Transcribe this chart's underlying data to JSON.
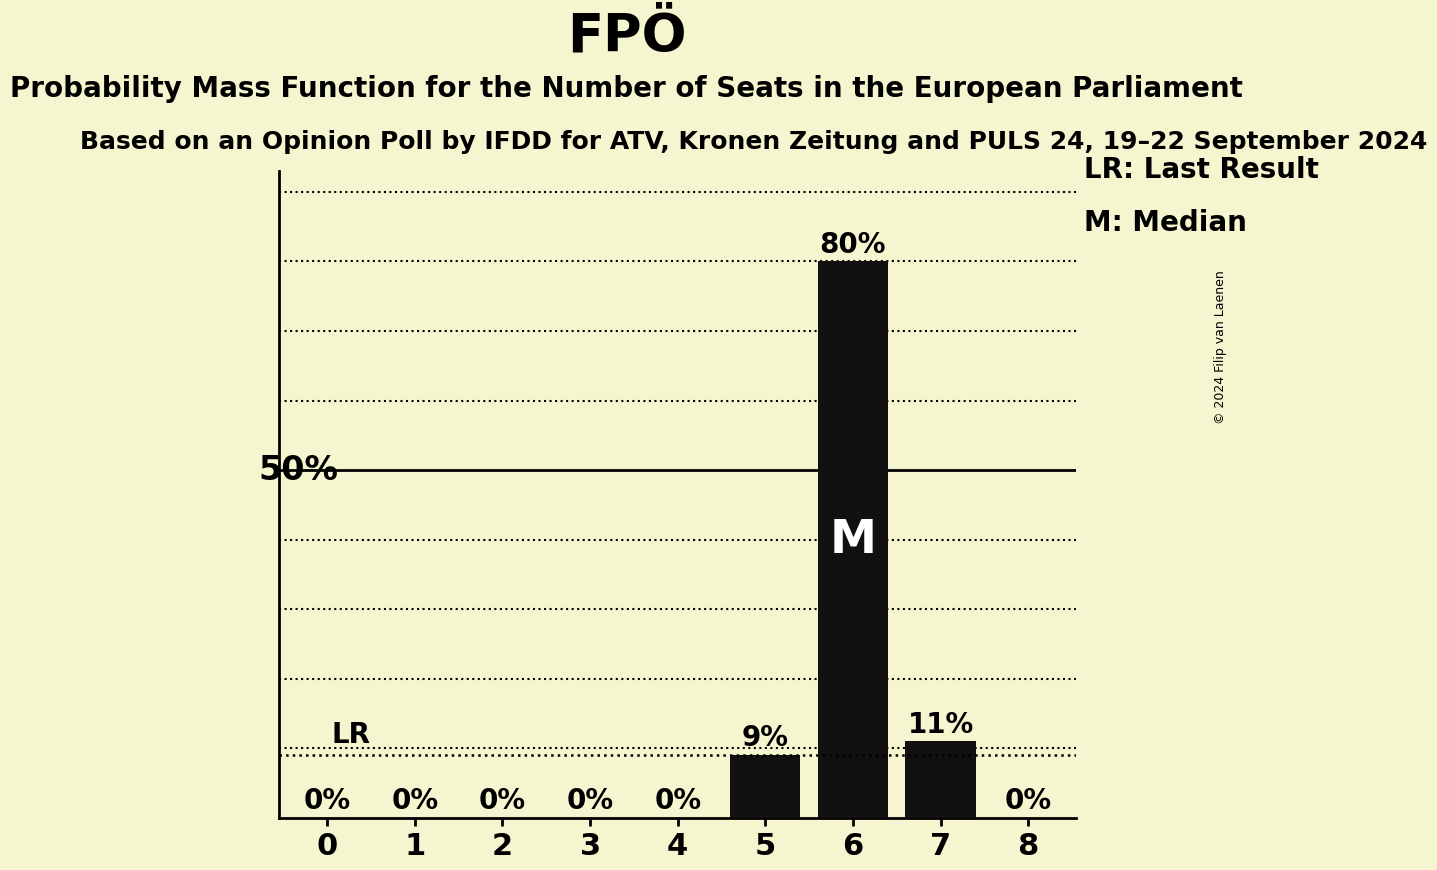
{
  "title": "FPÖ",
  "subtitle": "Probability Mass Function for the Number of Seats in the European Parliament",
  "sub_subtitle": "Based on an Opinion Poll by IFDD for ATV, Kronen Zeitung and PULS 24, 19–22 September 2024",
  "copyright": "© 2024 Filip van Laenen",
  "categories": [
    0,
    1,
    2,
    3,
    4,
    5,
    6,
    7,
    8
  ],
  "values": [
    0,
    0,
    0,
    0,
    0,
    9,
    80,
    11,
    0
  ],
  "bar_color": "#111111",
  "background_color": "#f5f5d0",
  "median_bar": 6,
  "last_result_value": 9,
  "yticks": [
    10,
    20,
    30,
    40,
    50,
    60,
    70,
    80,
    90
  ],
  "ylim": [
    0,
    93
  ],
  "legend_lr": "LR: Last Result",
  "legend_m": "M: Median",
  "title_fontsize": 38,
  "subtitle_fontsize": 20,
  "sub_subtitle_fontsize": 18,
  "bar_label_fontsize": 20,
  "pct_50_fontsize": 24,
  "tick_fontsize": 22,
  "legend_fontsize": 20,
  "m_label_fontsize": 34,
  "lr_label_fontsize": 20
}
